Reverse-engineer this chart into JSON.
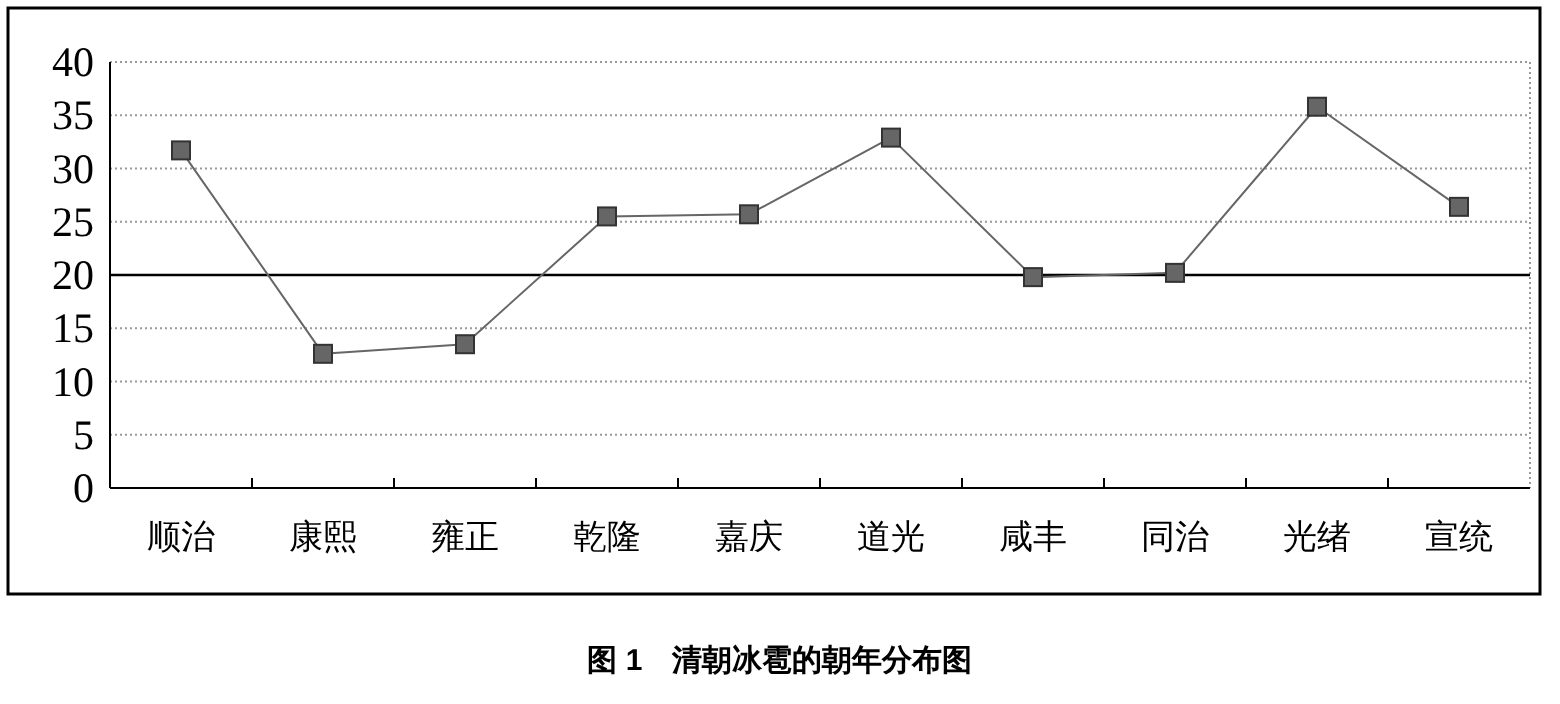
{
  "chart_data": {
    "type": "line",
    "title": "图 1　清朝冰雹的朝年分布图",
    "categories": [
      "顺治",
      "康熙",
      "雍正",
      "乾隆",
      "嘉庆",
      "道光",
      "咸丰",
      "同治",
      "光绪",
      "宣统"
    ],
    "series": [
      {
        "color": "#666666",
        "values": [
          31.7,
          12.6,
          13.5,
          25.5,
          25.7,
          32.9,
          19.8,
          20.2,
          35.8,
          26.4
        ]
      }
    ],
    "ylim": [
      0,
      40
    ],
    "yticks": [
      0,
      5,
      10,
      15,
      20,
      25,
      30,
      35,
      40
    ],
    "grid": "y",
    "marker": "square",
    "line_style": "solid",
    "ref_lines": [
      {
        "axis": "y",
        "value": 20,
        "color": "#000000"
      }
    ]
  }
}
